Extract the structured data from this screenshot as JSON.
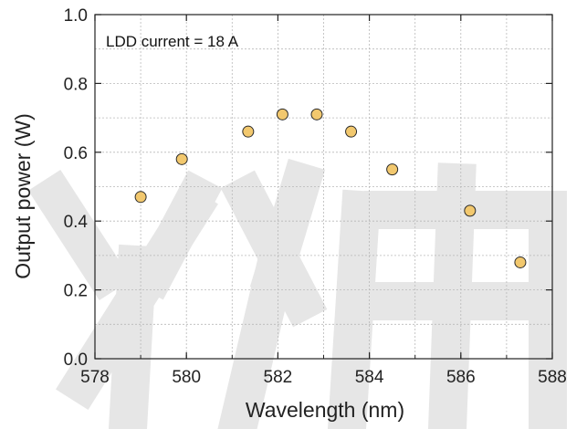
{
  "chart_data": {
    "type": "scatter",
    "xlabel": "Wavelength (nm)",
    "ylabel": "Output power (W)",
    "xlim": [
      578,
      588
    ],
    "ylim": [
      0.0,
      1.0
    ],
    "xticks": [
      578,
      580,
      582,
      584,
      586,
      588
    ],
    "yticks": [
      0.0,
      0.2,
      0.4,
      0.6,
      0.8,
      1.0
    ],
    "xtick_labels": [
      "578",
      "580",
      "582",
      "584",
      "586",
      "588"
    ],
    "ytick_labels": [
      "0.0",
      "0.2",
      "0.4",
      "0.6",
      "0.8",
      "1.0"
    ],
    "annotation": "LDD current = 18 A",
    "grid": "dotted",
    "series": [
      {
        "x": [
          579.0,
          579.9,
          581.35,
          582.1,
          582.85,
          583.6,
          584.5,
          586.2,
          587.3
        ],
        "y": [
          0.47,
          0.58,
          0.66,
          0.71,
          0.71,
          0.66,
          0.55,
          0.43,
          0.28
        ],
        "color": "#f2c86e",
        "edge_color": "#2a2a2a"
      }
    ]
  },
  "watermark": {
    "color": "#e6e6e6"
  }
}
